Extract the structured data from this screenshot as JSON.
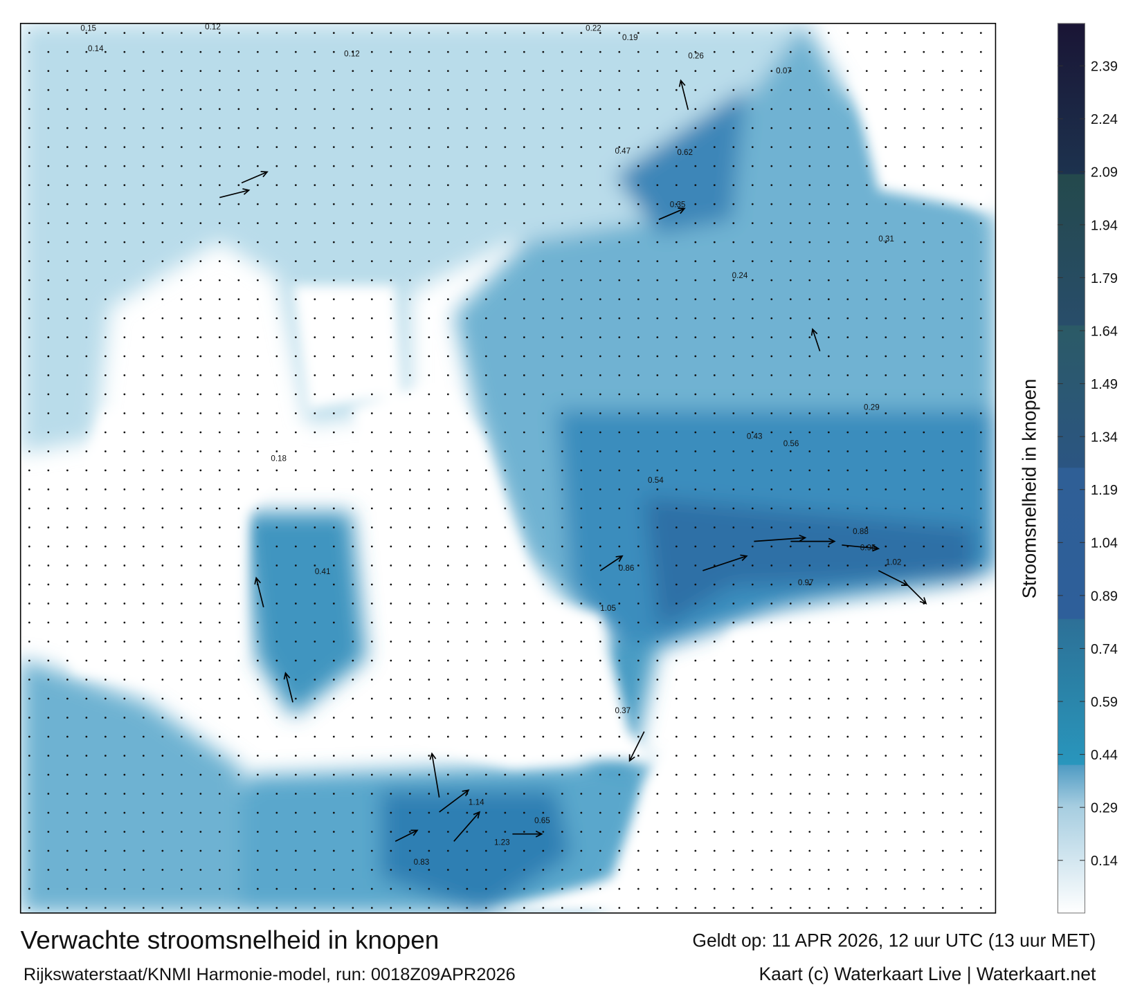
{
  "title": "Verwachte stroomsnelheid in knopen",
  "subtitle": "Rijkswaterstaat/KNMI Harmonie-model, run: 0018Z09APR2026",
  "valid_time": "Geldt op: 11 APR 2026, 12 uur UTC (13 uur MET)",
  "credit": "Kaart (c) Waterkaart Live | Waterkaart.net",
  "colorbar": {
    "label": "Stroomsnelheid in knopen",
    "ticks": [
      "2.39",
      "2.24",
      "2.09",
      "1.94",
      "1.79",
      "1.64",
      "1.49",
      "1.34",
      "1.19",
      "1.04",
      "0.89",
      "0.74",
      "0.59",
      "0.44",
      "0.29",
      "0.14"
    ],
    "colors": {
      "low": "#ffffff",
      "mid": "#2996bd",
      "high": "#1a1535"
    }
  },
  "map": {
    "sample_labels": [
      "0.15",
      "0.14",
      "0.12",
      "0.22",
      "0.19",
      "0.26",
      "0.47",
      "0.35",
      "0.62",
      "0.54",
      "0.88",
      "0.95",
      "1.02",
      "0.97",
      "0.86",
      "1.05",
      "1.23",
      "1.14",
      "0.83",
      "0.37",
      "0.24",
      "0.31",
      "0.12",
      "0.07",
      "0.56",
      "0.43",
      "0.29",
      "0.18",
      "0.65",
      "0.41"
    ]
  }
}
